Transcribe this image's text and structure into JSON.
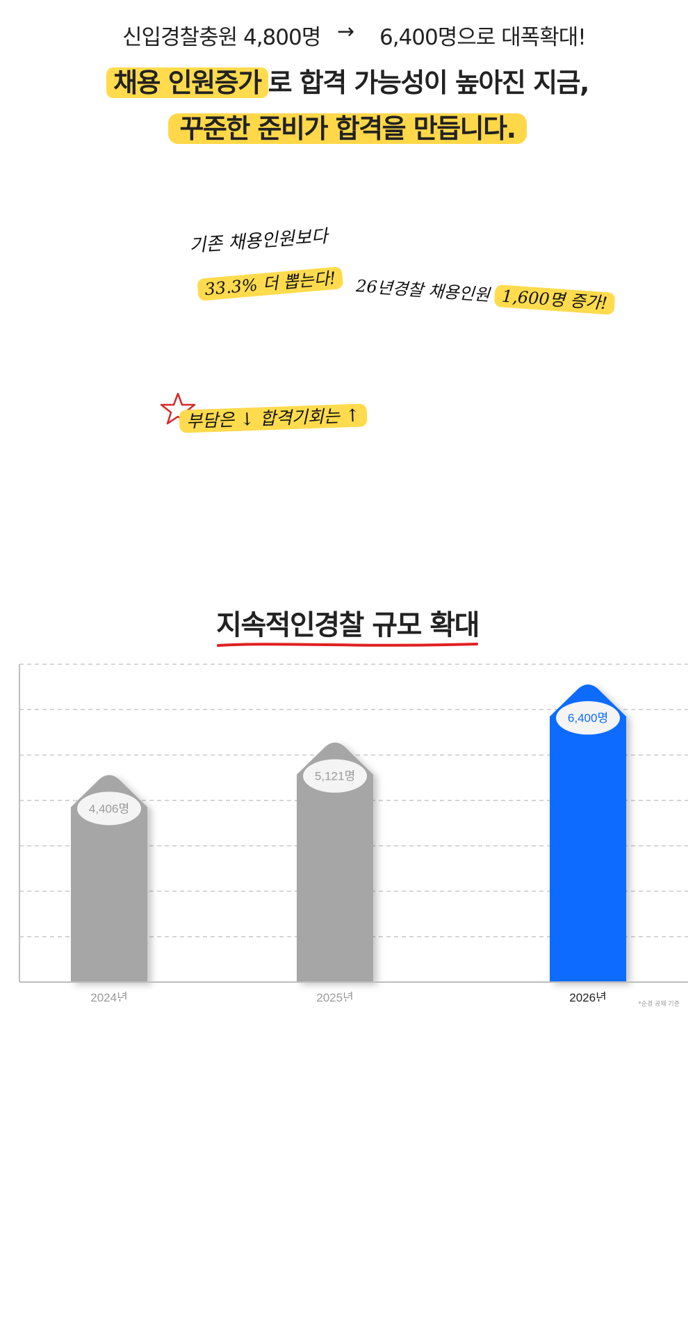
{
  "headline": {
    "left": "신입경찰충원 4,800명",
    "arrow": "→",
    "right": "6,400명으로 대폭확대!",
    "line2_highlight": "채용 인원증가",
    "line2_rest": "로 합격 가능성이 높아진 지금,",
    "line3": "꾸준한 준비가 합격을 만듭니다."
  },
  "notes": {
    "note1": "기존 채용인원보다",
    "note2": "33.3% 더 뽑는다!",
    "note3_prefix": "26년경찰 채용인원",
    "note3_highlight": "1,600명 증가!",
    "note4": "부담은 ↓ 합격기회는 ↑",
    "star_icon": "red-star"
  },
  "section": {
    "title": "지속적인경찰 규모 확대",
    "underline_color": "#e02020"
  },
  "colors": {
    "gray_bar": "#a6a6a6",
    "blue_bar": "#0a6cff",
    "highlight": "#ffdb4d"
  },
  "chart_data": {
    "type": "bar",
    "categories": [
      "2024년",
      "2025년",
      "2026년"
    ],
    "values": [
      4406,
      5121,
      6400
    ],
    "value_labels": [
      "4,406명",
      "5,121명",
      "6,400명"
    ],
    "highlight_index": 2,
    "ylim": [
      0,
      7000
    ],
    "grid": true,
    "title": "",
    "xlabel": "",
    "ylabel": ""
  },
  "footnote": "*순경 공채 기준"
}
